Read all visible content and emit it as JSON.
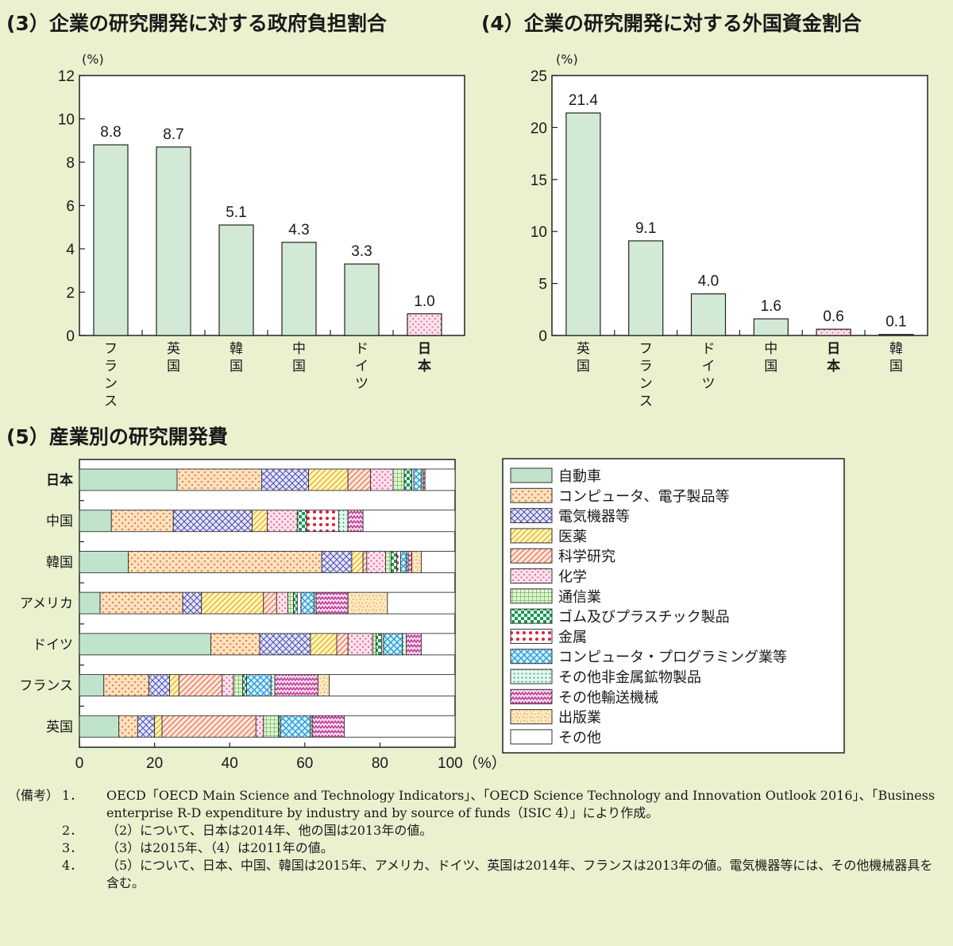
{
  "chart_data": [
    {
      "type": "bar",
      "title": "(3）企業の研究開発に対する政府負担割合",
      "unit": "(%)",
      "ylim": [
        0,
        12
      ],
      "yticks": [
        0,
        2,
        4,
        6,
        8,
        10,
        12
      ],
      "categories": [
        "フランス",
        "英国",
        "韓国",
        "中国",
        "ドイツ",
        "日本"
      ],
      "values": [
        8.8,
        8.7,
        5.1,
        4.3,
        3.3,
        1.0
      ],
      "value_labels": [
        "8.8",
        "8.7",
        "5.1",
        "4.3",
        "3.3",
        "1.0"
      ],
      "highlight": "日本",
      "bar_color": "#d2ead5",
      "highlight_color": "#f8dde8"
    },
    {
      "type": "bar",
      "title": "(4）企業の研究開発に対する外国資金割合",
      "unit": "(%)",
      "ylim": [
        0,
        25
      ],
      "yticks": [
        0,
        5,
        10,
        15,
        20,
        25
      ],
      "categories": [
        "英国",
        "フランス",
        "ドイツ",
        "中国",
        "日本",
        "韓国"
      ],
      "values": [
        21.4,
        9.1,
        4.0,
        1.6,
        0.6,
        0.1
      ],
      "value_labels": [
        "21.4",
        "9.1",
        "4.0",
        "1.6",
        "0.6",
        "0.1"
      ],
      "highlight": "日本",
      "bar_color": "#d2ead5",
      "highlight_color": "#f8dde8"
    },
    {
      "type": "bar",
      "orientation": "horizontal",
      "stacked": true,
      "title": "(5）産業別の研究開発費",
      "unit": "(%)",
      "xlim": [
        0,
        100
      ],
      "xticks": [
        0,
        20,
        40,
        60,
        80,
        100
      ],
      "x_unit_label": "100（%）",
      "categories": [
        "日本",
        "中国",
        "韓国",
        "アメリカ",
        "ドイツ",
        "フランス",
        "英国"
      ],
      "highlight": "日本",
      "legend_position": "right",
      "series": [
        {
          "name": "自動車",
          "color": "#bfe3cb",
          "pattern": "solid",
          "values": [
            26.0,
            8.5,
            13.0,
            5.5,
            35.0,
            6.5,
            10.5
          ]
        },
        {
          "name": "コンピュータ、電子製品等",
          "color": "#f4a15d",
          "pattern": "dots-orange",
          "values": [
            22.5,
            16.5,
            51.5,
            22.0,
            13.0,
            12.0,
            5.0
          ]
        },
        {
          "name": "電気機器等",
          "color": "#6f6fc9",
          "pattern": "crosshatch",
          "values": [
            12.5,
            21.0,
            8.0,
            5.0,
            13.5,
            5.5,
            4.5
          ]
        },
        {
          "name": "医薬",
          "color": "#f2c53d",
          "pattern": "diagonal-yellow",
          "values": [
            10.5,
            4.0,
            3.0,
            16.5,
            7.0,
            2.5,
            2.0
          ]
        },
        {
          "name": "科学研究",
          "color": "#f07a55",
          "pattern": "diagonal-red",
          "values": [
            6.0,
            0,
            1.0,
            3.5,
            3.0,
            11.5,
            25.0
          ]
        },
        {
          "name": "化学",
          "color": "#f28fb0",
          "pattern": "dots-pink",
          "values": [
            6.0,
            8.0,
            5.0,
            3.0,
            6.5,
            3.0,
            2.0
          ]
        },
        {
          "name": "通信業",
          "color": "#7cc45a",
          "pattern": "grid-green",
          "values": [
            3.0,
            0,
            1.5,
            1.5,
            1.0,
            2.5,
            4.0
          ]
        },
        {
          "name": "ゴム及びプラスチック製品",
          "color": "#1aa55a",
          "pattern": "checker-green",
          "values": [
            2.0,
            2.5,
            1.5,
            1.0,
            1.5,
            1.0,
            0.5
          ]
        },
        {
          "name": "金属",
          "color": "#e0203a",
          "pattern": "dots-red",
          "values": [
            0.5,
            8.5,
            1.0,
            1.0,
            0.5,
            0,
            0
          ]
        },
        {
          "name": "コンピュータ・プログラミング業等",
          "color": "#2aa9e0",
          "pattern": "hex-blue",
          "values": [
            2.0,
            0,
            1.5,
            3.5,
            5.0,
            6.5,
            8.0
          ]
        },
        {
          "name": "その他非金属鉱物製品",
          "color": "#2fb58a",
          "pattern": "dots-green",
          "values": [
            0.5,
            2.5,
            0.5,
            0.5,
            1.0,
            1.0,
            0.5
          ]
        },
        {
          "name": "その他輸送機械",
          "color": "#c83a9a",
          "pattern": "zigzag",
          "values": [
            0.5,
            4.0,
            1.0,
            8.5,
            4.0,
            11.5,
            8.5
          ]
        },
        {
          "name": "出版業",
          "color": "#f0b34a",
          "pattern": "speckle",
          "values": [
            0,
            0,
            2.5,
            10.5,
            0,
            3.0,
            0
          ]
        },
        {
          "name": "その他",
          "color": "#ffffff",
          "pattern": "solid-white",
          "values": [
            8.0,
            24.5,
            9.0,
            18.0,
            9.0,
            33.5,
            29.5
          ]
        }
      ]
    }
  ],
  "notes": {
    "head": "（備考）",
    "items": [
      {
        "num": "1．",
        "text": "OECD「OECD Main Science and Technology Indicators」、「OECD Science Technology and Innovation Outlook 2016」、「Business enterprise R-D expenditure by industry and by source of funds（ISIC 4）」により作成。"
      },
      {
        "num": "2．",
        "text": "（2）について、日本は2014年、他の国は2013年の値。"
      },
      {
        "num": "3．",
        "text": "（3）は2015年、（4）は2011年の値。"
      },
      {
        "num": "4．",
        "text": "（5）について、日本、中国、韓国は2015年、アメリカ、ドイツ、英国は2014年、フランスは2013年の値。電気機器等には、その他機械器具を含む。"
      }
    ]
  }
}
